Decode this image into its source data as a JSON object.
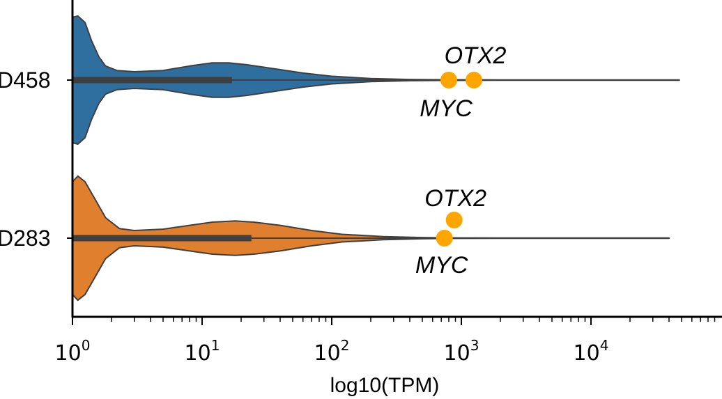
{
  "chart_data": {
    "type": "violin",
    "orientation": "horizontal",
    "xlabel": "log10(TPM)",
    "ylabel": "",
    "x_scale": "log",
    "xlim": [
      1,
      100000
    ],
    "x_major_ticks": [
      {
        "value": 1,
        "base": "10",
        "exp": "0"
      },
      {
        "value": 10,
        "base": "10",
        "exp": "1"
      },
      {
        "value": 100,
        "base": "10",
        "exp": "2"
      },
      {
        "value": 1000,
        "base": "10",
        "exp": "3"
      },
      {
        "value": 10000,
        "base": "10",
        "exp": "4"
      }
    ],
    "categories": [
      {
        "label": "D458",
        "color": "#2f6f9f",
        "min": 1,
        "max": 48000,
        "q1": 1,
        "median": 3.9,
        "q3": 17,
        "density": [
          [
            1.0,
            0.98
          ],
          [
            1.1,
            1.0
          ],
          [
            1.25,
            0.9
          ],
          [
            1.4,
            0.62
          ],
          [
            1.6,
            0.36
          ],
          [
            1.8,
            0.22
          ],
          [
            2.2,
            0.15
          ],
          [
            3,
            0.13
          ],
          [
            5,
            0.15
          ],
          [
            8,
            0.22
          ],
          [
            12,
            0.27
          ],
          [
            16,
            0.27
          ],
          [
            22,
            0.24
          ],
          [
            35,
            0.18
          ],
          [
            60,
            0.11
          ],
          [
            100,
            0.06
          ],
          [
            200,
            0.025
          ],
          [
            400,
            0.01
          ],
          [
            700,
            0.005
          ],
          [
            2000,
            0.003
          ],
          [
            48000,
            0.002
          ]
        ],
        "genes": [
          {
            "name": "MYC",
            "value": 800
          },
          {
            "name": "OTX2",
            "value": 1250
          }
        ]
      },
      {
        "label": "D283",
        "color": "#e07f2e",
        "min": 1,
        "max": 40000,
        "q1": 1,
        "median": 5.8,
        "q3": 24,
        "density": [
          [
            1.0,
            0.88
          ],
          [
            1.1,
            0.97
          ],
          [
            1.25,
            0.88
          ],
          [
            1.5,
            0.6
          ],
          [
            1.8,
            0.32
          ],
          [
            2.3,
            0.15
          ],
          [
            3,
            0.12
          ],
          [
            5,
            0.14
          ],
          [
            8,
            0.2
          ],
          [
            12,
            0.25
          ],
          [
            18,
            0.27
          ],
          [
            25,
            0.25
          ],
          [
            40,
            0.2
          ],
          [
            70,
            0.12
          ],
          [
            120,
            0.06
          ],
          [
            250,
            0.025
          ],
          [
            500,
            0.01
          ],
          [
            800,
            0.004
          ],
          [
            2000,
            0.003
          ],
          [
            40000,
            0.002
          ]
        ],
        "genes": [
          {
            "name": "OTX2",
            "value": 880
          },
          {
            "name": "MYC",
            "value": 740
          }
        ]
      }
    ],
    "gene_color": "#ffa500",
    "grid": false,
    "legend": "none"
  }
}
